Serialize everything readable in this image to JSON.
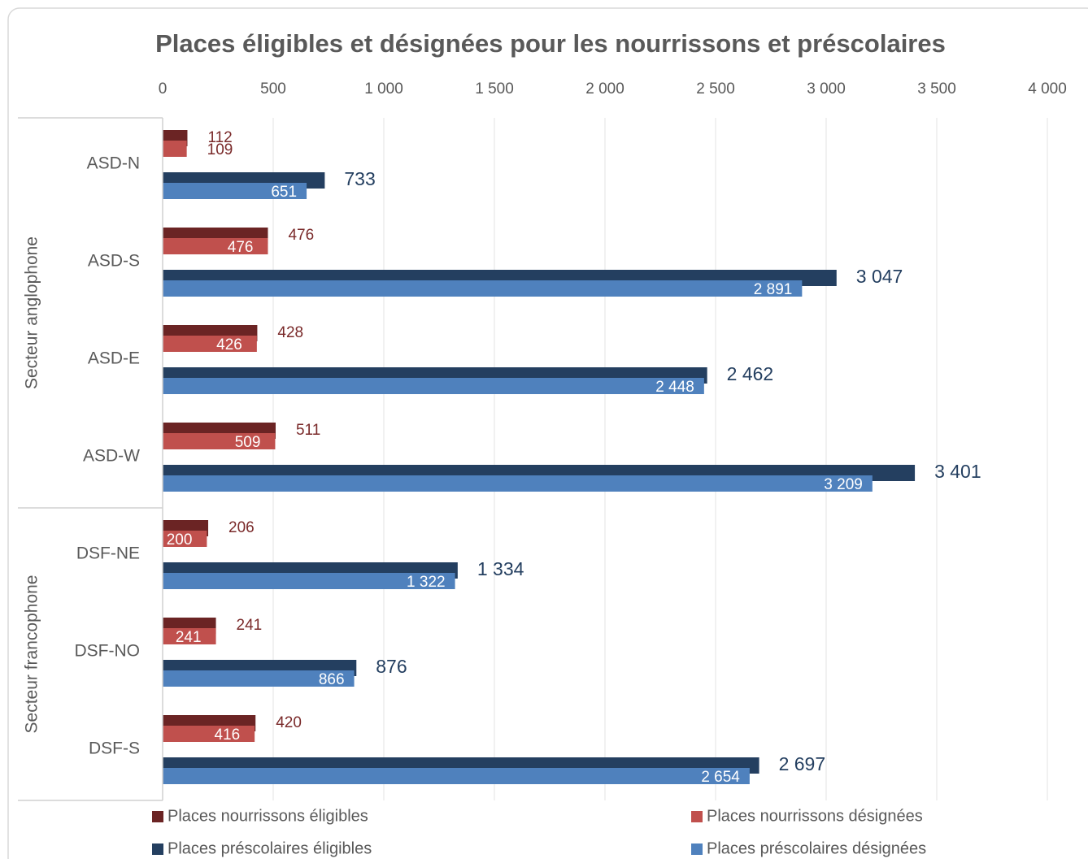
{
  "chart_data": {
    "type": "bar",
    "orientation": "horizontal",
    "title": "Places éligibles et désignées pour les nourrissons et préscolaires",
    "groups": [
      {
        "name": "Secteur anglophone",
        "categories": [
          "ASD-N",
          "ASD-S",
          "ASD-E",
          "ASD-W"
        ]
      },
      {
        "name": "Secteur francophone",
        "categories": [
          "DSF-NE",
          "DSF-NO",
          "DSF-S"
        ]
      }
    ],
    "series": [
      {
        "name": "Places nourrissons éligibles",
        "color": "#6b2424",
        "values": [
          112,
          476,
          428,
          511,
          206,
          241,
          420
        ],
        "value_labels": [
          "112",
          "476",
          "428",
          "511",
          "206",
          "241",
          "420"
        ]
      },
      {
        "name": "Places nourrissons désignées",
        "color": "#c0504d",
        "values": [
          109,
          476,
          426,
          509,
          200,
          241,
          416
        ],
        "value_labels": [
          "109",
          "476",
          "426",
          "509",
          "200",
          "241",
          "416"
        ]
      },
      {
        "name": "Places préscolaires éligibles",
        "color": "#243f60",
        "values": [
          733,
          3047,
          2462,
          3401,
          1334,
          876,
          2697
        ],
        "value_labels": [
          "733",
          "3 047",
          "2 462",
          "3 401",
          "1 334",
          "876",
          "2 697"
        ]
      },
      {
        "name": "Places préscolaires désignées",
        "color": "#4f81bd",
        "values": [
          651,
          2891,
          2448,
          3209,
          1322,
          866,
          2654
        ],
        "value_labels": [
          "651",
          "2 891",
          "2 448",
          "3 209",
          "1 322",
          "866",
          "2 654"
        ]
      }
    ],
    "xlim": [
      0,
      4000
    ],
    "xticks": [
      0,
      500,
      {
        "value": 1000,
        "label": "1 000"
      },
      {
        "value": 1500,
        "label": "1 500"
      },
      {
        "value": 2000,
        "label": "2 000"
      },
      {
        "value": 2500,
        "label": "2 500"
      },
      {
        "value": 3000,
        "label": "3 000"
      },
      {
        "value": 3500,
        "label": "3 500"
      },
      {
        "value": 4000,
        "label": "4 000"
      }
    ],
    "grid": true,
    "legend": "bottom"
  }
}
